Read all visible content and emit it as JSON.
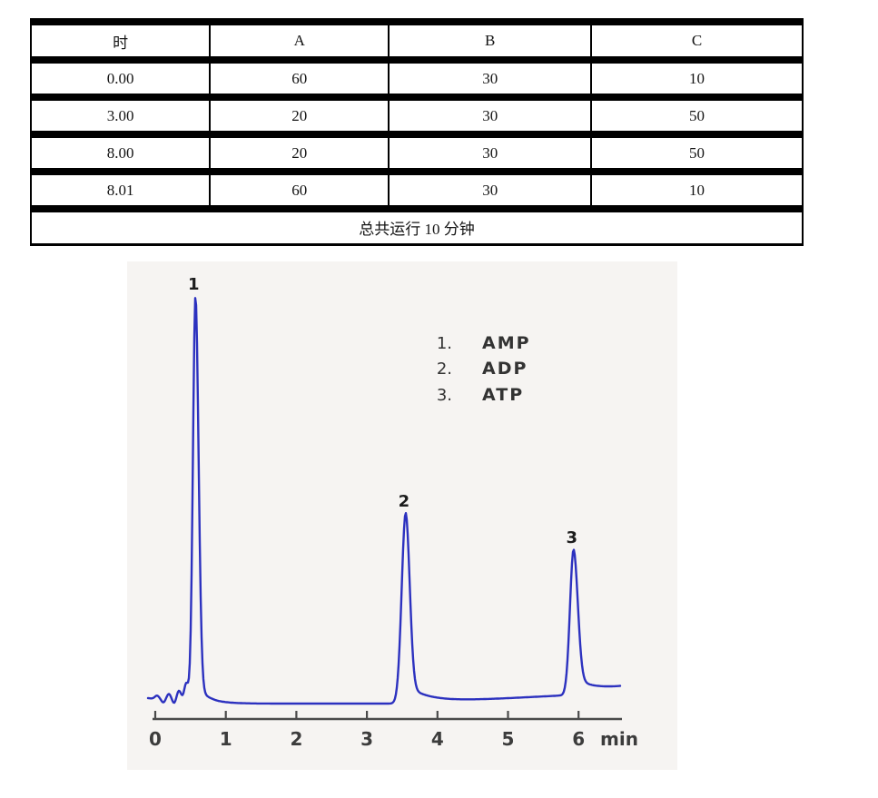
{
  "table": {
    "headers": [
      "时",
      "A",
      "B",
      "C"
    ],
    "rows": [
      [
        "0.00",
        "60",
        "30",
        "10"
      ],
      [
        "3.00",
        "20",
        "30",
        "50"
      ],
      [
        "8.00",
        "20",
        "30",
        "50"
      ],
      [
        "8.01",
        "60",
        "30",
        "10"
      ]
    ],
    "footer": "总共运行  10 分钟"
  },
  "chart_data": {
    "type": "line",
    "title": "",
    "xlabel": "min",
    "x_ticks": [
      "0",
      "1",
      "2",
      "3",
      "4",
      "5",
      "6"
    ],
    "xlim": [
      0,
      6.6
    ],
    "grid": false,
    "legend_position": "upper-right",
    "legend": [
      {
        "num": "1.",
        "name": "AMP"
      },
      {
        "num": "2.",
        "name": "ADP"
      },
      {
        "num": "3.",
        "name": "ATP"
      }
    ],
    "peaks": [
      {
        "label": "1",
        "compound": "AMP",
        "retention_min": 0.57,
        "rel_height": 1.0
      },
      {
        "label": "2",
        "compound": "ADP",
        "retention_min": 3.55,
        "rel_height": 0.47
      },
      {
        "label": "3",
        "compound": "ATP",
        "retention_min": 5.93,
        "rel_height": 0.356
      }
    ],
    "colors": {
      "trace": "#2c31bf",
      "axis": "#4a4a4a",
      "tick_label": "#3c3c3c",
      "peak_label": "#1c1c1c",
      "legend_text": "#333333"
    }
  }
}
